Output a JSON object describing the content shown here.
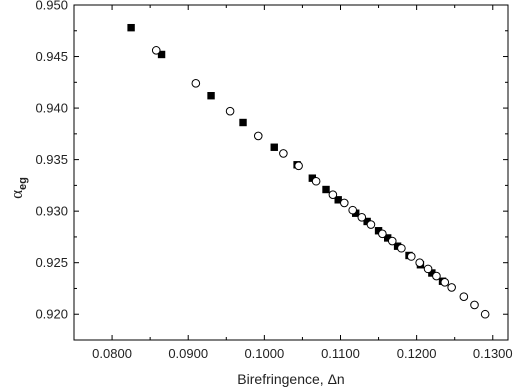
{
  "chart_data": {
    "type": "scatter",
    "xlabel": "Birefringence, Δn",
    "ylabel": {
      "main": "α",
      "sub": "eg"
    },
    "xlim": [
      0.075,
      0.132
    ],
    "ylim": [
      0.9175,
      0.95
    ],
    "x_ticks": [
      0.08,
      0.09,
      0.1,
      0.11,
      0.12,
      0.13
    ],
    "x_tick_labels": [
      "0.0800",
      "0.0900",
      "0.1000",
      "0.1100",
      "0.1200",
      "0.1300"
    ],
    "y_ticks": [
      0.92,
      0.925,
      0.93,
      0.935,
      0.94,
      0.945,
      0.95
    ],
    "y_tick_labels": [
      "0.920",
      "0.925",
      "0.930",
      "0.935",
      "0.940",
      "0.945",
      "0.950"
    ],
    "grid": false,
    "legend": "none",
    "series": [
      {
        "marker": "filled-square",
        "color": "#000000",
        "points": [
          [
            0.0825,
            0.9478
          ],
          [
            0.0865,
            0.9452
          ],
          [
            0.093,
            0.9412
          ],
          [
            0.0972,
            0.9386
          ],
          [
            0.1013,
            0.9362
          ],
          [
            0.1043,
            0.9345
          ],
          [
            0.1063,
            0.9332
          ],
          [
            0.1081,
            0.9321
          ],
          [
            0.1097,
            0.9311
          ],
          [
            0.112,
            0.9298
          ],
          [
            0.1135,
            0.929
          ],
          [
            0.115,
            0.9281
          ],
          [
            0.1162,
            0.9274
          ],
          [
            0.1175,
            0.9266
          ],
          [
            0.119,
            0.9257
          ],
          [
            0.1205,
            0.9248
          ],
          [
            0.122,
            0.924
          ],
          [
            0.1234,
            0.9232
          ]
        ]
      },
      {
        "marker": "open-circle",
        "color": "#000000",
        "points": [
          [
            0.0858,
            0.9456
          ],
          [
            0.091,
            0.9424
          ],
          [
            0.0955,
            0.9397
          ],
          [
            0.0992,
            0.9373
          ],
          [
            0.1025,
            0.9356
          ],
          [
            0.1045,
            0.9344
          ],
          [
            0.1068,
            0.9329
          ],
          [
            0.109,
            0.9316
          ],
          [
            0.1105,
            0.9308
          ],
          [
            0.1116,
            0.9301
          ],
          [
            0.1128,
            0.9294
          ],
          [
            0.114,
            0.9287
          ],
          [
            0.1155,
            0.9278
          ],
          [
            0.1168,
            0.9271
          ],
          [
            0.118,
            0.9264
          ],
          [
            0.1193,
            0.9256
          ],
          [
            0.1204,
            0.925
          ],
          [
            0.1215,
            0.9244
          ],
          [
            0.1226,
            0.9237
          ],
          [
            0.1237,
            0.9231
          ],
          [
            0.1246,
            0.9226
          ],
          [
            0.1262,
            0.9217
          ],
          [
            0.1276,
            0.9209
          ],
          [
            0.129,
            0.92
          ]
        ]
      }
    ]
  }
}
